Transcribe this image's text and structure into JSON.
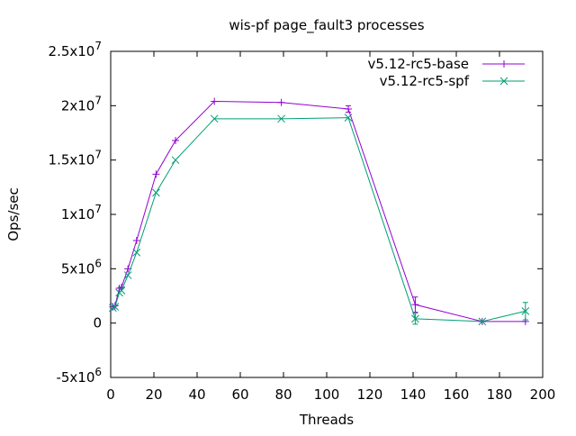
{
  "chart_data": {
    "type": "line",
    "title": "wis-pf page_fault3 processes",
    "xlabel": "Threads",
    "ylabel": "Ops/sec",
    "xlim": [
      0,
      200
    ],
    "ylim": [
      -5000000,
      25000000
    ],
    "x_ticks": [
      "0",
      "20",
      "40",
      "60",
      "80",
      "100",
      "120",
      "140",
      "160",
      "180",
      "200"
    ],
    "y_ticks": [
      {
        "value": 25000000,
        "mant": "2.5x10",
        "exp": "7"
      },
      {
        "value": 20000000,
        "mant": "2x10",
        "exp": "7"
      },
      {
        "value": 15000000,
        "mant": "1.5x10",
        "exp": "7"
      },
      {
        "value": 10000000,
        "mant": "1x10",
        "exp": "7"
      },
      {
        "value": 5000000,
        "mant": "5x10",
        "exp": "6"
      },
      {
        "value": 0,
        "mant": "0",
        "exp": ""
      },
      {
        "value": -5000000,
        "mant": "-5x10",
        "exp": "6"
      }
    ],
    "legend_position": "top-right",
    "grid": false,
    "series": [
      {
        "name": "v5.12-rc5-base",
        "color": "#9400d3",
        "marker": "plus",
        "x": [
          1,
          2,
          4,
          5,
          8,
          12,
          21,
          30,
          48,
          79,
          110,
          141,
          172,
          192
        ],
        "y": [
          1500000,
          1600000,
          3200000,
          3300000,
          5000000,
          7600000,
          13700000,
          16800000,
          20400000,
          20300000,
          19700000,
          1700000,
          150000,
          150000
        ],
        "err": [
          0,
          0,
          0,
          0,
          0,
          0,
          0,
          0,
          0,
          0,
          300000,
          700000,
          0,
          0
        ]
      },
      {
        "name": "v5.12-rc5-spf",
        "color": "#009e73",
        "marker": "cross",
        "x": [
          1,
          2,
          4,
          5,
          8,
          12,
          21,
          30,
          48,
          79,
          110,
          141,
          172,
          192
        ],
        "y": [
          1400000,
          1500000,
          2800000,
          3000000,
          4400000,
          6500000,
          12000000,
          15000000,
          18800000,
          18800000,
          18900000,
          400000,
          150000,
          1100000
        ],
        "err": [
          0,
          0,
          0,
          0,
          0,
          0,
          0,
          0,
          0,
          0,
          0,
          500000,
          0,
          800000
        ]
      }
    ]
  }
}
